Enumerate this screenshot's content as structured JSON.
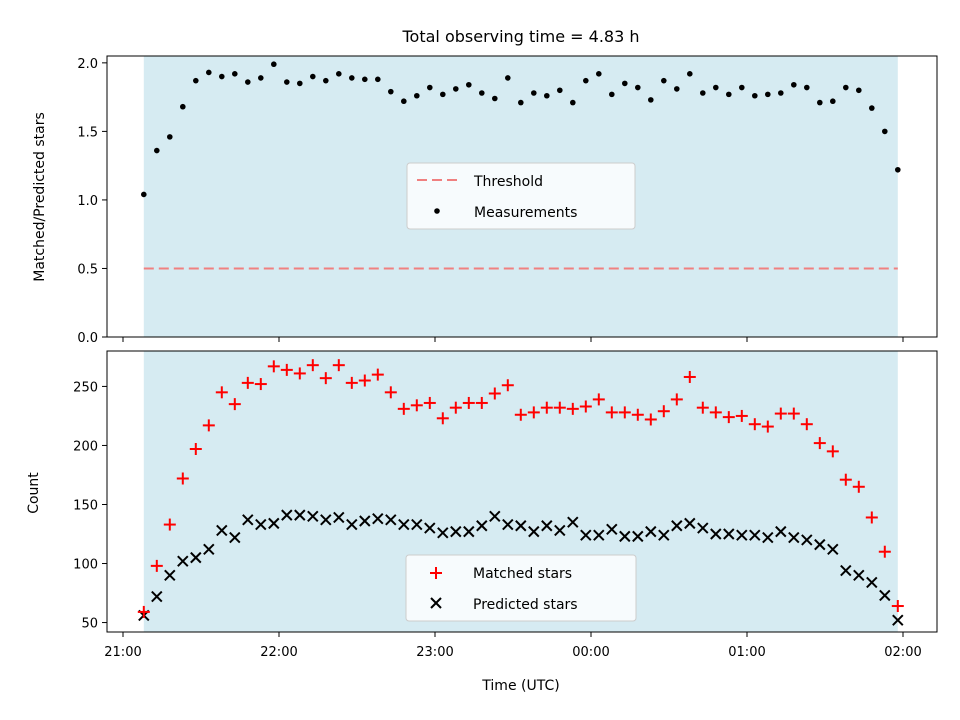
{
  "chart_data": [
    {
      "type": "scatter",
      "title": "Total observing time = 4.83 h",
      "xlabel": "",
      "ylabel": "Matched/Predicted stars",
      "ylim": [
        0,
        2.05
      ],
      "yticks": [
        "0.0",
        "0.5",
        "1.0",
        "1.5",
        "2.0"
      ],
      "ytick_values": [
        0,
        0.5,
        1.0,
        1.5,
        2.0
      ],
      "shaded_span": [
        "21:08",
        "01:58"
      ],
      "shade_color": "#add8e6",
      "legend_position": "center",
      "series": [
        {
          "name": "Threshold",
          "style": "dashed-line",
          "color": "#f08080",
          "y": 0.5
        },
        {
          "name": "Measurements",
          "style": "dot",
          "color": "#000000",
          "x": [
            "21:08",
            "21:13",
            "21:18",
            "21:23",
            "21:28",
            "21:33",
            "21:38",
            "21:43",
            "21:48",
            "21:53",
            "21:58",
            "22:03",
            "22:08",
            "22:13",
            "22:18",
            "22:23",
            "22:28",
            "22:33",
            "22:38",
            "22:43",
            "22:48",
            "22:53",
            "22:58",
            "23:03",
            "23:08",
            "23:13",
            "23:18",
            "23:23",
            "23:28",
            "23:33",
            "23:38",
            "23:43",
            "23:48",
            "23:53",
            "23:58",
            "00:03",
            "00:08",
            "00:13",
            "00:18",
            "00:23",
            "00:28",
            "00:33",
            "00:38",
            "00:43",
            "00:48",
            "00:53",
            "00:58",
            "01:03",
            "01:08",
            "01:13",
            "01:18",
            "01:23",
            "01:28",
            "01:33",
            "01:38",
            "01:43",
            "01:48",
            "01:53",
            "01:58"
          ],
          "y": [
            1.04,
            1.36,
            1.46,
            1.68,
            1.87,
            1.93,
            1.9,
            1.92,
            1.86,
            1.89,
            1.99,
            1.86,
            1.85,
            1.9,
            1.87,
            1.92,
            1.89,
            1.88,
            1.88,
            1.79,
            1.72,
            1.76,
            1.82,
            1.77,
            1.81,
            1.84,
            1.78,
            1.74,
            1.89,
            1.71,
            1.78,
            1.76,
            1.8,
            1.71,
            1.87,
            1.92,
            1.77,
            1.85,
            1.82,
            1.73,
            1.87,
            1.81,
            1.92,
            1.78,
            1.82,
            1.77,
            1.82,
            1.76,
            1.77,
            1.78,
            1.84,
            1.82,
            1.71,
            1.72,
            1.82,
            1.8,
            1.67,
            1.5,
            1.22
          ]
        }
      ]
    },
    {
      "type": "scatter",
      "title": "",
      "xlabel": "Time (UTC)",
      "ylabel": "Count",
      "ylim": [
        42,
        280
      ],
      "yticks": [
        "50",
        "100",
        "150",
        "200",
        "250"
      ],
      "ytick_values": [
        50,
        100,
        150,
        200,
        250
      ],
      "xlim": [
        "21:04",
        "02:05"
      ],
      "xticks": [
        "21:00",
        "22:00",
        "23:00",
        "00:00",
        "01:00",
        "02:00"
      ],
      "shaded_span": [
        "21:08",
        "01:58"
      ],
      "shade_color": "#add8e6",
      "legend_position": "lower center",
      "series": [
        {
          "name": "Matched stars",
          "style": "plus",
          "color": "#ff0000",
          "x": [
            "21:08",
            "21:13",
            "21:18",
            "21:23",
            "21:28",
            "21:33",
            "21:38",
            "21:43",
            "21:48",
            "21:53",
            "21:58",
            "22:03",
            "22:08",
            "22:13",
            "22:18",
            "22:23",
            "22:28",
            "22:33",
            "22:38",
            "22:43",
            "22:48",
            "22:53",
            "22:58",
            "23:03",
            "23:08",
            "23:13",
            "23:18",
            "23:23",
            "23:28",
            "23:33",
            "23:38",
            "23:43",
            "23:48",
            "23:53",
            "23:58",
            "00:03",
            "00:08",
            "00:13",
            "00:18",
            "00:23",
            "00:28",
            "00:33",
            "00:38",
            "00:43",
            "00:48",
            "00:53",
            "00:58",
            "01:03",
            "01:08",
            "01:13",
            "01:18",
            "01:23",
            "01:28",
            "01:33",
            "01:38",
            "01:43",
            "01:48",
            "01:53",
            "01:58"
          ],
          "y": [
            59,
            98,
            133,
            172,
            197,
            217,
            245,
            235,
            253,
            252,
            267,
            264,
            261,
            268,
            257,
            268,
            253,
            255,
            260,
            245,
            231,
            234,
            236,
            223,
            232,
            236,
            236,
            244,
            251,
            226,
            228,
            232,
            232,
            231,
            233,
            239,
            228,
            228,
            226,
            222,
            229,
            239,
            258,
            232,
            228,
            224,
            225,
            218,
            216,
            227,
            227,
            218,
            202,
            195,
            171,
            165,
            139,
            110,
            64
          ]
        },
        {
          "name": "Predicted stars",
          "style": "cross",
          "color": "#000000",
          "x": [
            "21:08",
            "21:13",
            "21:18",
            "21:23",
            "21:28",
            "21:33",
            "21:38",
            "21:43",
            "21:48",
            "21:53",
            "21:58",
            "22:03",
            "22:08",
            "22:13",
            "22:18",
            "22:23",
            "22:28",
            "22:33",
            "22:38",
            "22:43",
            "22:48",
            "22:53",
            "22:58",
            "23:03",
            "23:08",
            "23:13",
            "23:18",
            "23:23",
            "23:28",
            "23:33",
            "23:38",
            "23:43",
            "23:48",
            "23:53",
            "23:58",
            "00:03",
            "00:08",
            "00:13",
            "00:18",
            "00:23",
            "00:28",
            "00:33",
            "00:38",
            "00:43",
            "00:48",
            "00:53",
            "00:58",
            "01:03",
            "01:08",
            "01:13",
            "01:18",
            "01:23",
            "01:28",
            "01:33",
            "01:38",
            "01:43",
            "01:48",
            "01:53",
            "01:58"
          ],
          "y": [
            56,
            72,
            90,
            102,
            105,
            112,
            128,
            122,
            137,
            133,
            134,
            141,
            141,
            140,
            137,
            139,
            133,
            136,
            138,
            137,
            133,
            133,
            130,
            126,
            127,
            127,
            132,
            140,
            133,
            132,
            127,
            132,
            128,
            135,
            124,
            124,
            129,
            123,
            123,
            127,
            124,
            132,
            134,
            130,
            125,
            125,
            124,
            124,
            122,
            127,
            122,
            120,
            116,
            112,
            94,
            90,
            84,
            73,
            52
          ]
        }
      ]
    }
  ]
}
